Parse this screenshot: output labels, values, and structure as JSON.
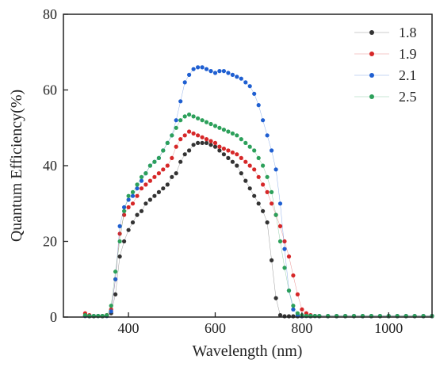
{
  "chart_data": {
    "type": "scatter",
    "title": "",
    "xlabel": "Wavelength (nm)",
    "ylabel": "Quantum Efficiency(%)",
    "xlim": [
      250,
      1100
    ],
    "ylim": [
      0,
      80
    ],
    "x_ticks": [
      400,
      600,
      800,
      1000
    ],
    "y_ticks": [
      0,
      20,
      40,
      60,
      80
    ],
    "grid": false,
    "legend_position": "top-right",
    "series": [
      {
        "name": "1.8",
        "color": "#333333",
        "x": [
          300,
          310,
          320,
          330,
          340,
          350,
          360,
          370,
          380,
          390,
          400,
          410,
          420,
          430,
          440,
          450,
          460,
          470,
          480,
          490,
          500,
          510,
          520,
          530,
          540,
          550,
          560,
          570,
          580,
          590,
          600,
          610,
          620,
          630,
          640,
          650,
          660,
          670,
          680,
          690,
          700,
          710,
          720,
          730,
          740,
          750,
          760,
          770,
          780,
          790,
          800,
          820,
          840,
          860,
          880,
          900,
          920,
          940,
          960,
          980,
          1000,
          1020,
          1040,
          1060,
          1080,
          1100
        ],
        "y": [
          0.3,
          0.2,
          0.2,
          0.3,
          0.2,
          0.3,
          1,
          6,
          16,
          20,
          23,
          25,
          27,
          28,
          30,
          31,
          32,
          33,
          34,
          35,
          37,
          38,
          41,
          43,
          44,
          45.5,
          46,
          46,
          46,
          45.5,
          45,
          44,
          43,
          42,
          41,
          40,
          38,
          36,
          34,
          32,
          30,
          28,
          25,
          15,
          5,
          0.5,
          0.2,
          0.2,
          0.2,
          0.2,
          0.2,
          0.2,
          0.2,
          0.2,
          0.2,
          0.2,
          0.2,
          0.2,
          0.2,
          0.2,
          0.2,
          0.2,
          0.2,
          0.2,
          0.2,
          0.2
        ]
      },
      {
        "name": "1.9",
        "color": "#d62728",
        "x": [
          300,
          310,
          320,
          330,
          340,
          350,
          360,
          370,
          380,
          390,
          400,
          410,
          420,
          430,
          440,
          450,
          460,
          470,
          480,
          490,
          500,
          510,
          520,
          530,
          540,
          550,
          560,
          570,
          580,
          590,
          600,
          610,
          620,
          630,
          640,
          650,
          660,
          670,
          680,
          690,
          700,
          710,
          720,
          730,
          740,
          750,
          760,
          770,
          780,
          790,
          800,
          810,
          820,
          830,
          840,
          860,
          880,
          900,
          920,
          940,
          960,
          980,
          1000,
          1020,
          1040,
          1060,
          1080,
          1100
        ],
        "y": [
          1,
          0.5,
          0.3,
          0.3,
          0.3,
          0.5,
          2,
          10,
          22,
          27,
          29,
          30,
          32,
          34,
          35,
          36,
          37,
          38,
          39,
          40,
          42,
          45,
          47,
          48,
          49,
          48.5,
          48,
          47.5,
          47,
          46.5,
          46,
          45,
          44.5,
          44,
          43.5,
          43,
          42,
          41,
          40,
          39,
          37,
          35,
          33,
          30,
          27,
          24,
          20,
          16,
          11,
          6,
          2,
          1,
          0.5,
          0.3,
          0.3,
          0.3,
          0.3,
          0.3,
          0.3,
          0.3,
          0.3,
          0.3,
          0.3,
          0.3,
          0.3,
          0.3,
          0.3,
          0.3
        ]
      },
      {
        "name": "2.1",
        "color": "#1f5fd1",
        "x": [
          300,
          310,
          320,
          330,
          340,
          350,
          360,
          370,
          380,
          390,
          400,
          410,
          420,
          430,
          440,
          450,
          460,
          470,
          480,
          490,
          500,
          510,
          520,
          530,
          540,
          550,
          560,
          570,
          580,
          590,
          600,
          610,
          620,
          630,
          640,
          650,
          660,
          670,
          680,
          690,
          700,
          710,
          720,
          730,
          740,
          750,
          760,
          770,
          780,
          790,
          800,
          810,
          820,
          830,
          840,
          860,
          880,
          900,
          920,
          940,
          960,
          980,
          1000,
          1020,
          1040,
          1060,
          1080,
          1100
        ],
        "y": [
          0.3,
          0.3,
          0.3,
          0.3,
          0.3,
          0.3,
          1.5,
          10,
          24,
          29,
          31,
          32,
          34,
          36,
          38,
          40,
          41,
          42,
          44,
          46,
          48,
          52,
          57,
          62,
          64,
          65.5,
          66,
          66,
          65.5,
          65,
          64.5,
          65,
          65,
          64.5,
          64,
          63.5,
          63,
          62,
          61,
          59,
          56,
          52,
          48,
          44,
          39,
          30,
          18,
          7,
          2,
          0.5,
          0.3,
          0.3,
          0.3,
          0.3,
          0.3,
          0.3,
          0.3,
          0.3,
          0.3,
          0.3,
          0.3,
          0.3,
          0.3,
          0.3,
          0.3,
          0.3,
          0.3,
          0.3
        ]
      },
      {
        "name": "2.5",
        "color": "#2ca05a",
        "x": [
          300,
          310,
          320,
          330,
          340,
          350,
          360,
          370,
          380,
          390,
          400,
          410,
          420,
          430,
          440,
          450,
          460,
          470,
          480,
          490,
          500,
          510,
          520,
          530,
          540,
          550,
          560,
          570,
          580,
          590,
          600,
          610,
          620,
          630,
          640,
          650,
          660,
          670,
          680,
          690,
          700,
          710,
          720,
          730,
          740,
          750,
          760,
          770,
          780,
          790,
          800,
          810,
          820,
          830,
          840,
          860,
          880,
          900,
          920,
          940,
          960,
          980,
          1000,
          1020,
          1040,
          1060,
          1080,
          1100
        ],
        "y": [
          0.5,
          0.3,
          0.3,
          0.3,
          0.3,
          0.5,
          3,
          12,
          20,
          28,
          32,
          33,
          35,
          37,
          38,
          40,
          41,
          42,
          44,
          46,
          48,
          50,
          52,
          53,
          53.5,
          53,
          52.5,
          52,
          51.5,
          51,
          50.5,
          50,
          49.5,
          49,
          48.5,
          48,
          47,
          46,
          45,
          44,
          42,
          40,
          37,
          33,
          27,
          20,
          13,
          7,
          3,
          1,
          0.5,
          0.3,
          0.3,
          0.3,
          0.3,
          0.3,
          0.3,
          0.3,
          0.3,
          0.3,
          0.3,
          0.3,
          0.3,
          0.3,
          0.3,
          0.3,
          0.3,
          0.3
        ]
      }
    ]
  }
}
